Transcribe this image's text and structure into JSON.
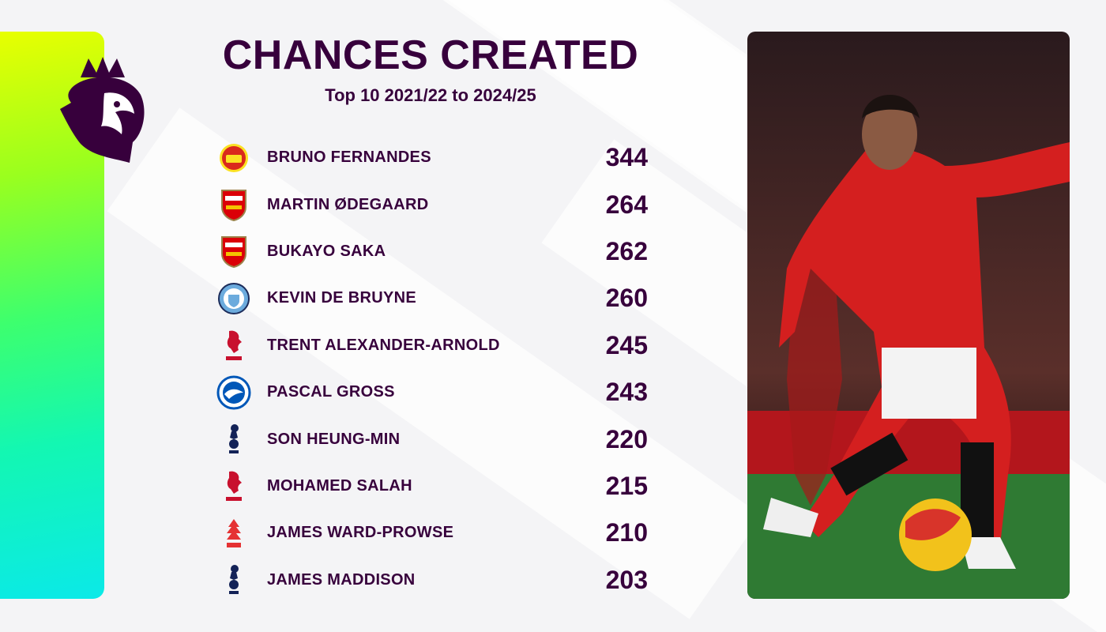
{
  "title": "CHANCES CREATED",
  "subtitle": "Top 10 2021/22 to 2024/25",
  "colors": {
    "text": "#37003c",
    "accent_gradient": [
      "#e8ff00",
      "#0be9e8"
    ]
  },
  "players": [
    {
      "name": "BRUNO FERNANDES",
      "value": "344",
      "club_icon": "man-utd-crest-icon"
    },
    {
      "name": "MARTIN ØDEGAARD",
      "value": "264",
      "club_icon": "arsenal-crest-icon"
    },
    {
      "name": "BUKAYO SAKA",
      "value": "262",
      "club_icon": "arsenal-crest-icon"
    },
    {
      "name": "KEVIN DE BRUYNE",
      "value": "260",
      "club_icon": "man-city-crest-icon"
    },
    {
      "name": "TRENT ALEXANDER-ARNOLD",
      "value": "245",
      "club_icon": "liverpool-crest-icon"
    },
    {
      "name": "PASCAL GROSS",
      "value": "243",
      "club_icon": "brighton-crest-icon"
    },
    {
      "name": "SON HEUNG-MIN",
      "value": "220",
      "club_icon": "tottenham-crest-icon"
    },
    {
      "name": "MOHAMED SALAH",
      "value": "215",
      "club_icon": "liverpool-crest-icon"
    },
    {
      "name": "JAMES WARD-PROWSE",
      "value": "210",
      "club_icon": "nottingham-forest-crest-icon"
    },
    {
      "name": "JAMES MADDISON",
      "value": "203",
      "club_icon": "tottenham-crest-icon"
    }
  ]
}
